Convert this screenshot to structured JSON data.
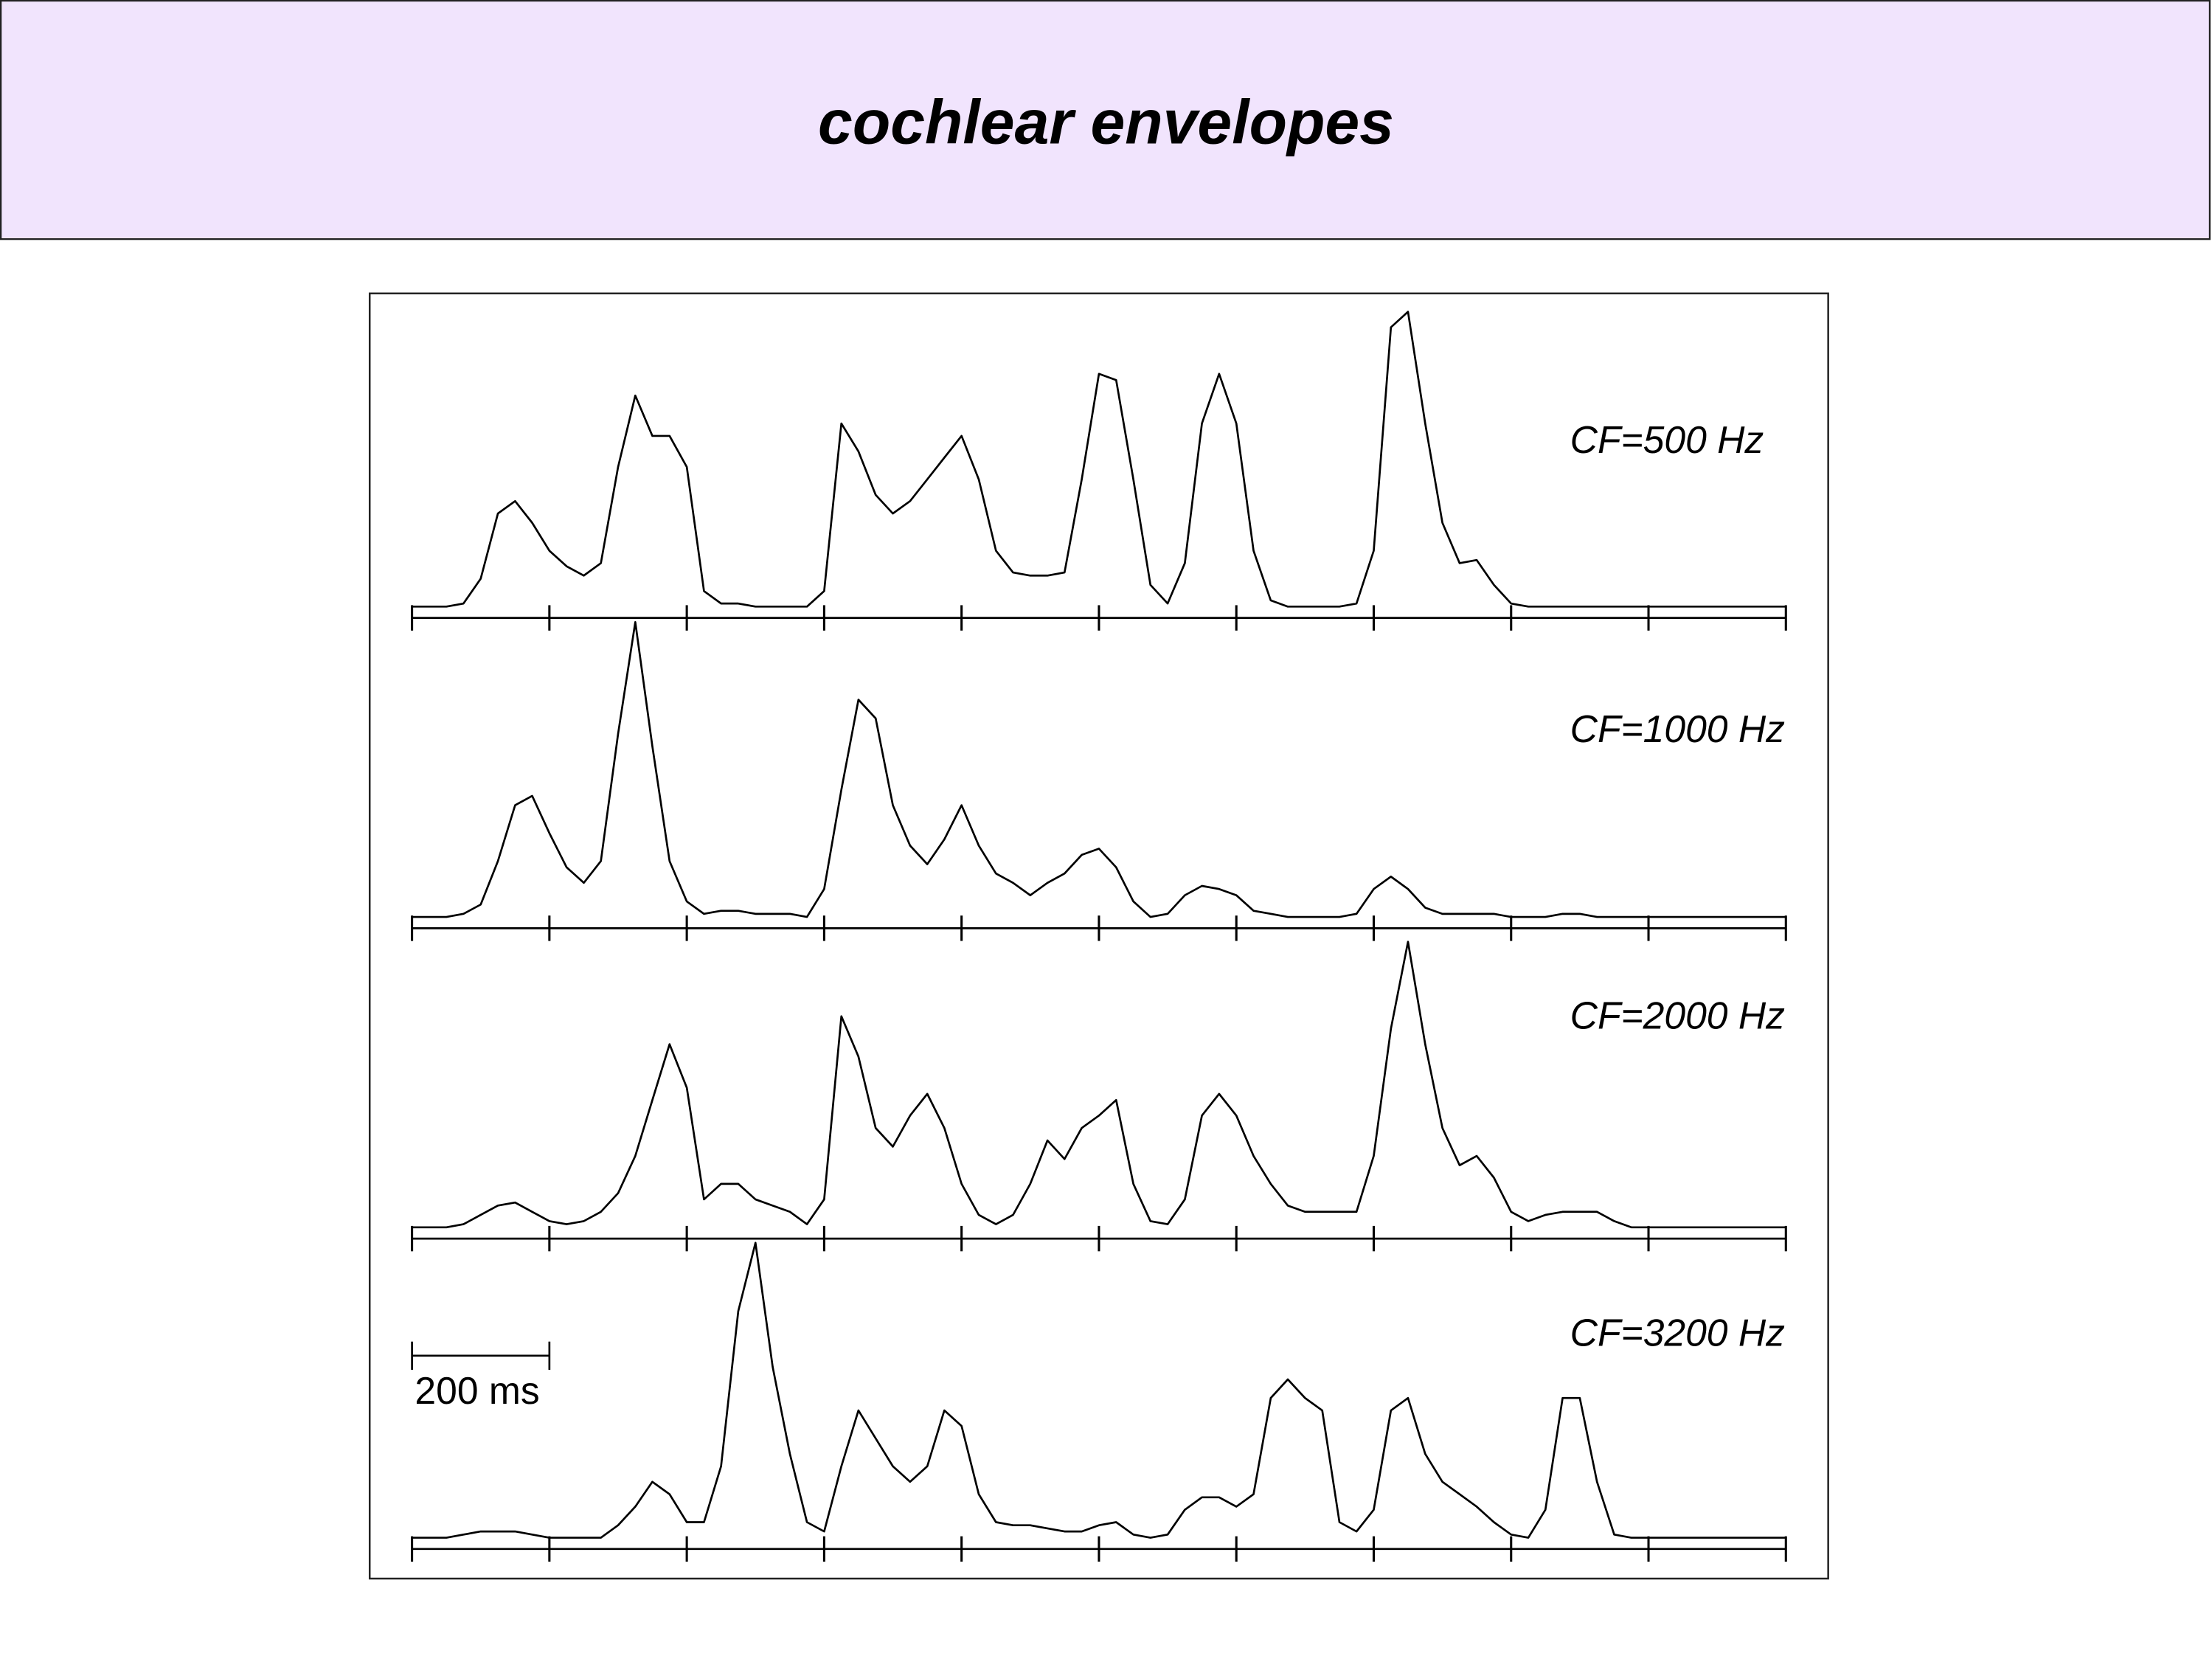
{
  "chart_data": {
    "type": "line",
    "title": "cochlear envelopes",
    "x": [
      0,
      25,
      50,
      75,
      100,
      125,
      150,
      175,
      200,
      225,
      250,
      275,
      300,
      325,
      350,
      375,
      400,
      425,
      450,
      475,
      500,
      525,
      550,
      575,
      600,
      625,
      650,
      675,
      700,
      725,
      750,
      775,
      800,
      825,
      850,
      875,
      900,
      925,
      950,
      975,
      1000,
      1025,
      1050,
      1075,
      1100,
      1125,
      1150,
      1175,
      1200,
      1225,
      1250,
      1275,
      1300,
      1325,
      1350,
      1375,
      1400,
      1425,
      1450,
      1475,
      1500,
      1525,
      1550,
      1575,
      1600,
      1625,
      1650,
      1675,
      1700,
      1725,
      1750,
      1775,
      1800,
      1825,
      1850,
      1875,
      1900,
      1925,
      1950,
      1975,
      2000
    ],
    "xlim": [
      0,
      2000
    ],
    "xticks": [
      0,
      200,
      400,
      600,
      800,
      1000,
      1200,
      1400,
      1600,
      1800,
      2000
    ],
    "ylim": [
      0,
      100
    ],
    "scale_bar": "200 ms",
    "series": [
      {
        "name": "CF=500 Hz",
        "color": "#000000",
        "values": [
          0,
          0,
          0,
          1,
          9,
          30,
          34,
          27,
          18,
          13,
          10,
          14,
          45,
          68,
          55,
          55,
          45,
          5,
          1,
          1,
          0,
          0,
          0,
          0,
          5,
          59,
          50,
          36,
          30,
          34,
          41,
          48,
          55,
          41,
          18,
          11,
          10,
          10,
          11,
          41,
          75,
          73,
          41,
          7,
          1,
          14,
          59,
          75,
          59,
          18,
          2,
          0,
          0,
          0,
          0,
          1,
          18,
          90,
          95,
          59,
          27,
          14,
          15,
          7,
          1,
          0,
          0,
          0,
          0,
          0,
          0,
          0,
          0,
          0,
          0,
          0,
          0,
          0,
          0,
          0,
          0
        ]
      },
      {
        "name": "CF=1000 Hz",
        "color": "#000000",
        "values": [
          0,
          0,
          0,
          1,
          4,
          18,
          36,
          39,
          27,
          16,
          11,
          18,
          59,
          95,
          55,
          18,
          5,
          1,
          2,
          2,
          1,
          1,
          1,
          0,
          9,
          41,
          70,
          64,
          36,
          23,
          17,
          25,
          36,
          23,
          14,
          11,
          7,
          11,
          14,
          20,
          22,
          16,
          5,
          0,
          1,
          7,
          10,
          9,
          7,
          2,
          1,
          0,
          0,
          0,
          0,
          1,
          9,
          13,
          9,
          3,
          1,
          1,
          1,
          1,
          0,
          0,
          0,
          1,
          1,
          0,
          0,
          0,
          0,
          0,
          0,
          0,
          0,
          0,
          0,
          0,
          0
        ]
      },
      {
        "name": "CF=2000 Hz",
        "color": "#000000",
        "values": [
          0,
          0,
          0,
          1,
          4,
          7,
          8,
          5,
          2,
          1,
          2,
          5,
          11,
          23,
          41,
          59,
          45,
          9,
          14,
          14,
          9,
          7,
          5,
          1,
          9,
          68,
          55,
          32,
          26,
          36,
          43,
          32,
          14,
          4,
          1,
          4,
          14,
          28,
          22,
          32,
          36,
          41,
          14,
          2,
          1,
          9,
          36,
          43,
          36,
          23,
          14,
          7,
          5,
          5,
          5,
          5,
          23,
          64,
          92,
          59,
          32,
          20,
          23,
          16,
          5,
          2,
          4,
          5,
          5,
          5,
          2,
          0,
          0,
          0,
          0,
          0,
          0,
          0,
          0,
          0,
          0
        ]
      },
      {
        "name": "CF=3200 Hz",
        "color": "#000000",
        "values": [
          0,
          0,
          0,
          1,
          2,
          2,
          2,
          1,
          0,
          0,
          0,
          0,
          4,
          10,
          18,
          14,
          5,
          5,
          23,
          73,
          95,
          55,
          27,
          5,
          2,
          23,
          41,
          32,
          23,
          18,
          23,
          41,
          36,
          14,
          5,
          4,
          4,
          3,
          2,
          2,
          4,
          5,
          1,
          0,
          1,
          9,
          13,
          13,
          10,
          14,
          45,
          51,
          45,
          41,
          5,
          2,
          9,
          41,
          45,
          27,
          18,
          14,
          10,
          5,
          1,
          0,
          9,
          45,
          45,
          18,
          1,
          0,
          0,
          0,
          0,
          0,
          0,
          0,
          0,
          0,
          0
        ]
      }
    ]
  }
}
